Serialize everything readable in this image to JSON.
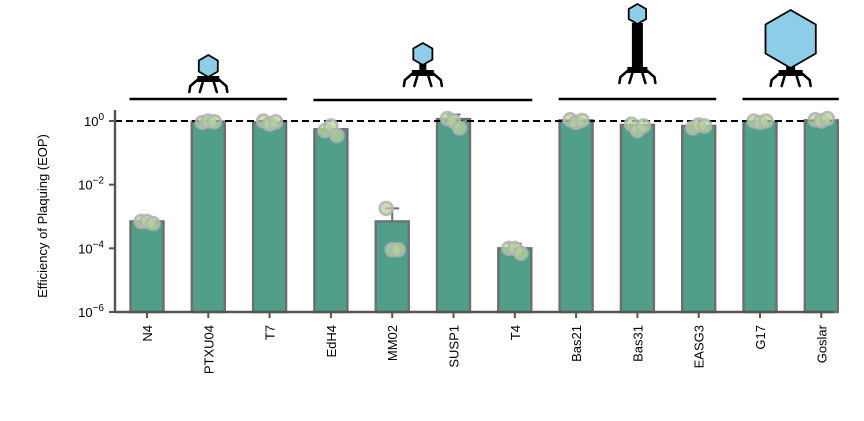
{
  "chart_data": {
    "type": "bar",
    "ylabel": "Efficiency of Plaquing (EOP)",
    "yscale": "log",
    "ylim": [
      1e-06,
      3
    ],
    "yticks": [
      {
        "value": 1,
        "label_base": "10",
        "label_exp": "0"
      },
      {
        "value": 0.01,
        "label_base": "10",
        "label_exp": "−2"
      },
      {
        "value": 0.0001,
        "label_base": "10",
        "label_exp": "−4"
      },
      {
        "value": 1e-06,
        "label_base": "10",
        "label_exp": "−6"
      }
    ],
    "reference_line": {
      "value": 1,
      "style": "dashed"
    },
    "categories": [
      "N4",
      "PTXU04",
      "T7",
      "EdH4",
      "MM02",
      "SUSP1",
      "T4",
      "Bas21",
      "Bas31",
      "EASG3",
      "G17",
      "Goslar"
    ],
    "values": [
      0.0007,
      0.95,
      0.9,
      0.55,
      0.0007,
      1.15,
      0.0001,
      1.05,
      0.75,
      0.7,
      0.95,
      1.05
    ],
    "error_upper": [
      null,
      null,
      null,
      null,
      0.0018,
      1.6,
      0.00014,
      null,
      null,
      null,
      null,
      null
    ],
    "replicates": [
      [
        0.0007,
        0.0007,
        0.0006
      ],
      [
        0.9,
        1.0,
        0.95
      ],
      [
        1.0,
        0.8,
        0.95
      ],
      [
        0.5,
        0.7,
        0.35
      ],
      [
        0.0018,
        9e-05,
        9e-05
      ],
      [
        1.2,
        1.0,
        0.6
      ],
      [
        0.0001,
        0.0001,
        7e-05
      ],
      [
        1.1,
        0.9,
        1.05
      ],
      [
        0.8,
        0.5,
        0.7
      ],
      [
        0.6,
        0.75,
        0.7
      ],
      [
        1.0,
        0.9,
        1.0
      ],
      [
        1.1,
        1.0,
        1.2
      ]
    ],
    "groups": [
      {
        "start": 0,
        "end": 2,
        "morphology": "podovirus",
        "icon": "short-tail-phage-icon"
      },
      {
        "start": 3,
        "end": 6,
        "morphology": "myovirus",
        "icon": "contractile-tail-phage-icon"
      },
      {
        "start": 7,
        "end": 9,
        "morphology": "siphovirus-long-tail",
        "icon": "long-tail-phage-icon"
      },
      {
        "start": 10,
        "end": 11,
        "morphology": "jumbo-phage",
        "icon": "large-capsid-phage-icon"
      }
    ],
    "colors": {
      "bar_fill": "#519e8a",
      "bar_edge": "#6e6e6e",
      "point_fill": "#b5d69a",
      "point_edge": "#b2b2b2",
      "capsid": "#8ecde8",
      "axis": "#555555"
    }
  }
}
